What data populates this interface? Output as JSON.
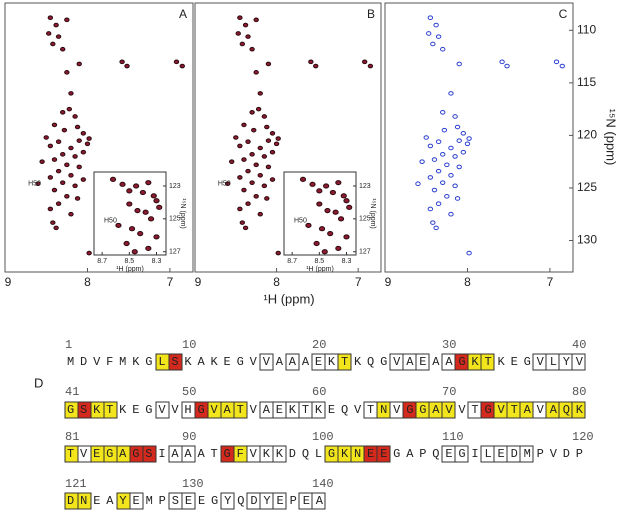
{
  "chart_data": [
    {
      "type": "scatter",
      "label": "A",
      "color": "#8b1a2e",
      "x": [
        8.45,
        8.38,
        8.47,
        8.35,
        8.42,
        8.3,
        8.25,
        7.58,
        7.52,
        6.92,
        6.85,
        8.1,
        8.25,
        8.2,
        8.22,
        8.15,
        8.3,
        8.12,
        8.28,
        8.4,
        8.05,
        7.98,
        8.0,
        8.1,
        8.35,
        8.45,
        8.5,
        8.2,
        8.3,
        8.15,
        8.05,
        8.4,
        8.55,
        8.25,
        8.1,
        8.35,
        8.2,
        8.45,
        8.6,
        8.3,
        8.15,
        8.05,
        8.4,
        8.25,
        8.12,
        8.35,
        8.45,
        8.2,
        8.42,
        8.38,
        7.98
      ],
      "y": [
        108.8,
        109.5,
        110.3,
        110.6,
        111.3,
        111.8,
        109.0,
        113.0,
        113.4,
        113.0,
        113.4,
        113.2,
        114.0,
        116.0,
        117.5,
        118.2,
        117.8,
        119.2,
        119.5,
        119.0,
        119.8,
        120.3,
        120.8,
        120.5,
        120.6,
        121.0,
        120.2,
        121.2,
        121.8,
        122.0,
        121.6,
        122.3,
        122.5,
        122.8,
        123.0,
        123.4,
        123.8,
        124.0,
        124.6,
        124.5,
        124.8,
        124.2,
        125.2,
        125.8,
        126.0,
        126.5,
        127.0,
        127.5,
        128.3,
        128.8,
        131.2
      ],
      "xlim": [
        9,
        6.72
      ],
      "ylim": [
        107.4,
        133
      ],
      "xticks": [
        9,
        8,
        7
      ],
      "annotation": "H50",
      "inset": {
        "x": [
          8.62,
          8.55,
          8.5,
          8.45,
          8.4,
          8.36,
          8.32,
          8.3,
          8.28,
          8.5,
          8.44,
          8.38,
          8.34,
          8.58,
          8.48,
          8.42,
          8.3,
          8.52,
          8.36,
          8.46
        ],
        "y": [
          122.6,
          122.9,
          123.3,
          123.0,
          123.4,
          122.8,
          123.6,
          123.9,
          124.3,
          124.1,
          124.5,
          124.6,
          125.0,
          125.4,
          125.6,
          125.9,
          126.1,
          126.5,
          126.8,
          127.0
        ],
        "xlim": [
          8.76,
          8.23
        ],
        "ylim": [
          122.15,
          127.2
        ],
        "xticks": [
          8.7,
          8.5,
          8.3
        ],
        "yticks": [
          123,
          125,
          127
        ],
        "x_label": "¹H (ppm)",
        "y_label": "¹⁵N (ppm)",
        "annotation": "H50"
      }
    },
    {
      "type": "scatter",
      "label": "B",
      "color": "#8b1a2e",
      "x": [
        8.45,
        8.38,
        8.47,
        8.35,
        8.42,
        8.3,
        8.25,
        7.58,
        7.52,
        6.92,
        6.85,
        8.1,
        8.25,
        8.2,
        8.22,
        8.15,
        8.3,
        8.12,
        8.28,
        8.4,
        8.05,
        7.98,
        8.0,
        8.1,
        8.35,
        8.45,
        8.5,
        8.2,
        8.3,
        8.15,
        8.05,
        8.4,
        8.55,
        8.25,
        8.1,
        8.35,
        8.2,
        8.45,
        8.6,
        8.3,
        8.15,
        8.05,
        8.4,
        8.25,
        8.12,
        8.35,
        8.45,
        8.2,
        8.42,
        8.38,
        7.98
      ],
      "y": [
        108.8,
        109.5,
        110.3,
        110.6,
        111.3,
        111.8,
        109.0,
        113.0,
        113.4,
        113.0,
        113.4,
        113.2,
        114.0,
        116.0,
        117.5,
        118.2,
        117.8,
        119.2,
        119.5,
        119.0,
        119.8,
        120.3,
        120.8,
        120.5,
        120.6,
        121.0,
        120.2,
        121.2,
        121.8,
        122.0,
        121.6,
        122.3,
        122.5,
        122.8,
        123.0,
        123.4,
        123.8,
        124.0,
        124.6,
        124.5,
        124.8,
        124.2,
        125.2,
        125.8,
        126.0,
        126.5,
        127.0,
        127.5,
        128.3,
        128.8,
        131.2
      ],
      "xlim": [
        9,
        6.72
      ],
      "ylim": [
        107.4,
        133
      ],
      "xticks": [
        9,
        8,
        7
      ],
      "annotation": "H50",
      "inset": {
        "x": [
          8.62,
          8.55,
          8.5,
          8.45,
          8.4,
          8.36,
          8.32,
          8.3,
          8.28,
          8.5,
          8.44,
          8.38,
          8.34,
          8.58,
          8.48,
          8.42,
          8.3,
          8.52,
          8.36,
          8.46
        ],
        "y": [
          122.6,
          122.9,
          123.3,
          123.0,
          123.4,
          122.8,
          123.6,
          123.9,
          124.3,
          124.1,
          124.5,
          124.6,
          125.0,
          125.4,
          125.6,
          125.9,
          126.1,
          126.5,
          126.8,
          127.0
        ],
        "xlim": [
          8.76,
          8.23
        ],
        "ylim": [
          122.15,
          127.2
        ],
        "xticks": [
          8.7,
          8.5,
          8.3
        ],
        "yticks": [
          123,
          125,
          127
        ],
        "x_label": "¹H (ppm)",
        "y_label": "¹⁵N (ppm)",
        "annotation": "H50"
      }
    },
    {
      "type": "scatter",
      "label": "C",
      "color": "#2a3fd0",
      "x": [
        8.45,
        8.38,
        8.47,
        8.35,
        8.42,
        8.3,
        7.58,
        7.52,
        6.92,
        6.85,
        8.1,
        8.2,
        8.15,
        8.3,
        8.12,
        8.28,
        8.05,
        7.98,
        8.0,
        8.1,
        8.35,
        8.45,
        8.5,
        8.2,
        8.3,
        8.15,
        8.05,
        8.4,
        8.55,
        8.25,
        8.1,
        8.35,
        8.2,
        8.45,
        8.6,
        8.3,
        8.15,
        8.4,
        8.25,
        8.12,
        8.35,
        8.45,
        8.2,
        8.42,
        8.38,
        7.98
      ],
      "y": [
        108.8,
        109.5,
        110.3,
        110.6,
        111.3,
        111.8,
        113.0,
        113.4,
        113.0,
        113.4,
        113.2,
        116.0,
        118.2,
        117.8,
        119.2,
        119.5,
        119.8,
        120.3,
        120.8,
        120.5,
        120.6,
        121.0,
        120.2,
        121.2,
        121.8,
        122.0,
        121.6,
        122.3,
        122.5,
        122.8,
        123.0,
        123.4,
        123.8,
        124.0,
        124.6,
        124.5,
        124.8,
        125.2,
        125.8,
        126.0,
        126.5,
        127.0,
        127.5,
        128.3,
        128.8,
        131.2
      ],
      "xlim": [
        9,
        6.72
      ],
      "ylim": [
        107.4,
        133
      ],
      "xticks": [
        9,
        8,
        7
      ],
      "yticks": [
        110,
        115,
        120,
        125,
        130
      ]
    }
  ],
  "x_label": "¹H (ppm)",
  "y_label": "¹⁵N (ppm)",
  "sequence": {
    "label": "D",
    "rows": [
      {
        "numbers": [
          1,
          10,
          20,
          30,
          40
        ],
        "residues": "MDVFMKGLSKAKEGVVAAAEKTKQGVAEAAGKTKEGVLYV"
      },
      {
        "numbers": [
          41,
          50,
          60,
          70,
          80
        ],
        "residues": "GSKTKEGVVHGVATVAEKTKEQVTNVGGAVVTGVTAVAQK"
      },
      {
        "numbers": [
          81,
          90,
          100,
          110,
          120
        ],
        "residues": "TVEGAGSIAAATGFVKKDQLGKNEEGAPQEGILEDMPVDP"
      },
      {
        "numbers": [
          121,
          130,
          140
        ],
        "residues": "DNEAYEMPSEEGYQDYEPEA"
      }
    ]
  }
}
